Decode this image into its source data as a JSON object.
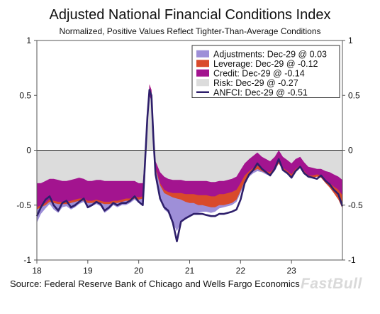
{
  "chart_data": {
    "type": "area",
    "title": "Adjusted National Financial Conditions Index",
    "subtitle": "Normalized, Positive Values Reflect Tighter-Than-Average Conditions",
    "source": "Source: Federal Reserve Bank of Chicago and Wells Fargo Economics",
    "watermark": "FastBull",
    "xlabel": "",
    "ylabel": "",
    "ylim": [
      -1,
      1
    ],
    "xlim": [
      2018.0,
      2024.0
    ],
    "x_ticks": [
      {
        "value": 2018,
        "label": "18"
      },
      {
        "value": 2019,
        "label": "19"
      },
      {
        "value": 2020,
        "label": "20"
      },
      {
        "value": 2021,
        "label": "21"
      },
      {
        "value": 2022,
        "label": "22"
      },
      {
        "value": 2023,
        "label": "23"
      }
    ],
    "y_ticks": [
      {
        "value": 1,
        "label": "1"
      },
      {
        "value": 0.5,
        "label": "0.5"
      },
      {
        "value": 0,
        "label": "0"
      },
      {
        "value": -0.5,
        "label": "-0.5"
      },
      {
        "value": -1,
        "label": "-1"
      }
    ],
    "legend_position": "top-right",
    "colors": {
      "Adjustments": "#9e8fd8",
      "Leverage": "#d94a2b",
      "Credit": "#a3148f",
      "Risk": "#dcdcdc",
      "ANFCI": "#2e1f6b",
      "zero_line": "#333333"
    },
    "x": [
      2018.0,
      2018.08,
      2018.17,
      2018.25,
      2018.33,
      2018.42,
      2018.5,
      2018.58,
      2018.67,
      2018.75,
      2018.83,
      2018.92,
      2019.0,
      2019.08,
      2019.17,
      2019.25,
      2019.33,
      2019.42,
      2019.5,
      2019.58,
      2019.67,
      2019.75,
      2019.83,
      2019.92,
      2020.0,
      2020.08,
      2020.17,
      2020.21,
      2020.25,
      2020.29,
      2020.33,
      2020.42,
      2020.5,
      2020.58,
      2020.67,
      2020.75,
      2020.83,
      2020.92,
      2021.0,
      2021.08,
      2021.17,
      2021.25,
      2021.33,
      2021.42,
      2021.5,
      2021.58,
      2021.67,
      2021.75,
      2021.83,
      2021.92,
      2022.0,
      2022.08,
      2022.17,
      2022.25,
      2022.33,
      2022.42,
      2022.5,
      2022.58,
      2022.67,
      2022.75,
      2022.83,
      2022.92,
      2023.0,
      2023.08,
      2023.17,
      2023.25,
      2023.33,
      2023.42,
      2023.5,
      2023.58,
      2023.67,
      2023.75,
      2023.83,
      2023.92,
      2024.0
    ],
    "series": [
      {
        "name": "Risk",
        "kind": "area",
        "values": [
          -0.3,
          -0.3,
          -0.28,
          -0.26,
          -0.26,
          -0.27,
          -0.28,
          -0.28,
          -0.27,
          -0.26,
          -0.25,
          -0.26,
          -0.28,
          -0.28,
          -0.27,
          -0.27,
          -0.28,
          -0.28,
          -0.28,
          -0.28,
          -0.28,
          -0.28,
          -0.28,
          -0.28,
          -0.3,
          -0.3,
          0.2,
          0.5,
          0.45,
          0.1,
          -0.1,
          -0.2,
          -0.24,
          -0.26,
          -0.27,
          -0.27,
          -0.27,
          -0.28,
          -0.28,
          -0.28,
          -0.28,
          -0.28,
          -0.28,
          -0.29,
          -0.29,
          -0.28,
          -0.28,
          -0.27,
          -0.26,
          -0.24,
          -0.18,
          -0.12,
          -0.08,
          -0.05,
          -0.02,
          -0.06,
          -0.08,
          -0.1,
          -0.06,
          0.0,
          -0.06,
          -0.09,
          -0.12,
          -0.08,
          -0.06,
          -0.11,
          -0.15,
          -0.16,
          -0.17,
          -0.17,
          -0.19,
          -0.2,
          -0.22,
          -0.24,
          -0.27
        ]
      },
      {
        "name": "Credit",
        "kind": "area",
        "values": [
          -0.22,
          -0.2,
          -0.2,
          -0.19,
          -0.2,
          -0.2,
          -0.19,
          -0.19,
          -0.19,
          -0.19,
          -0.19,
          -0.18,
          -0.18,
          -0.18,
          -0.18,
          -0.19,
          -0.19,
          -0.19,
          -0.18,
          -0.18,
          -0.17,
          -0.16,
          -0.16,
          -0.14,
          -0.13,
          -0.12,
          0.08,
          0.1,
          0.1,
          0.05,
          -0.05,
          -0.1,
          -0.12,
          -0.12,
          -0.12,
          -0.12,
          -0.12,
          -0.12,
          -0.12,
          -0.12,
          -0.13,
          -0.13,
          -0.13,
          -0.13,
          -0.13,
          -0.12,
          -0.12,
          -0.12,
          -0.12,
          -0.12,
          -0.12,
          -0.11,
          -0.11,
          -0.11,
          -0.12,
          -0.11,
          -0.11,
          -0.1,
          -0.1,
          -0.1,
          -0.1,
          -0.1,
          -0.1,
          -0.09,
          -0.08,
          -0.08,
          -0.08,
          -0.07,
          -0.05,
          -0.06,
          -0.08,
          -0.1,
          -0.11,
          -0.12,
          -0.14
        ]
      },
      {
        "name": "Leverage",
        "kind": "area",
        "values": [
          -0.02,
          -0.02,
          -0.02,
          -0.02,
          -0.02,
          -0.02,
          -0.02,
          -0.02,
          -0.02,
          -0.02,
          -0.02,
          -0.02,
          -0.02,
          -0.02,
          -0.02,
          -0.02,
          -0.02,
          -0.02,
          -0.02,
          -0.02,
          -0.02,
          -0.02,
          -0.02,
          -0.02,
          -0.02,
          -0.02,
          0.0,
          0.0,
          0.0,
          0.0,
          -0.02,
          -0.02,
          -0.03,
          -0.03,
          -0.04,
          -0.05,
          -0.06,
          -0.07,
          -0.08,
          -0.08,
          -0.09,
          -0.09,
          -0.1,
          -0.1,
          -0.1,
          -0.1,
          -0.1,
          -0.1,
          -0.1,
          -0.09,
          -0.07,
          -0.05,
          -0.04,
          -0.03,
          -0.03,
          -0.02,
          -0.02,
          -0.02,
          -0.02,
          -0.02,
          -0.02,
          -0.02,
          -0.02,
          -0.02,
          -0.02,
          -0.02,
          -0.02,
          -0.02,
          -0.02,
          -0.02,
          -0.03,
          -0.04,
          -0.06,
          -0.09,
          -0.12
        ]
      },
      {
        "name": "Adjustments",
        "kind": "area",
        "values": [
          -0.12,
          -0.06,
          -0.03,
          -0.02,
          -0.06,
          -0.08,
          -0.03,
          -0.02,
          -0.06,
          -0.05,
          -0.03,
          -0.01,
          -0.05,
          -0.03,
          -0.02,
          -0.03,
          -0.08,
          -0.05,
          -0.02,
          -0.04,
          -0.03,
          -0.04,
          -0.02,
          -0.01,
          -0.03,
          -0.04,
          -0.01,
          -0.02,
          -0.03,
          -0.03,
          -0.05,
          -0.12,
          -0.15,
          -0.16,
          -0.23,
          -0.3,
          -0.2,
          -0.15,
          -0.12,
          -0.1,
          -0.07,
          -0.06,
          -0.05,
          -0.05,
          -0.04,
          -0.03,
          -0.02,
          -0.02,
          -0.02,
          -0.02,
          -0.02,
          -0.02,
          -0.01,
          -0.02,
          -0.02,
          -0.01,
          -0.01,
          -0.01,
          -0.01,
          0.0,
          0.0,
          0.0,
          0.0,
          0.0,
          0.0,
          0.0,
          0.01,
          0.01,
          0.01,
          0.02,
          0.02,
          0.03,
          0.03,
          0.03,
          0.03
        ]
      },
      {
        "name": "ANFCI",
        "kind": "line",
        "values": [
          -0.6,
          -0.52,
          -0.45,
          -0.42,
          -0.5,
          -0.55,
          -0.48,
          -0.46,
          -0.52,
          -0.5,
          -0.47,
          -0.44,
          -0.52,
          -0.5,
          -0.47,
          -0.49,
          -0.55,
          -0.52,
          -0.48,
          -0.5,
          -0.48,
          -0.48,
          -0.46,
          -0.42,
          -0.47,
          -0.5,
          0.3,
          0.55,
          0.5,
          0.1,
          -0.22,
          -0.44,
          -0.52,
          -0.55,
          -0.66,
          -0.83,
          -0.65,
          -0.62,
          -0.6,
          -0.58,
          -0.58,
          -0.58,
          -0.59,
          -0.6,
          -0.6,
          -0.58,
          -0.58,
          -0.57,
          -0.56,
          -0.54,
          -0.45,
          -0.3,
          -0.22,
          -0.18,
          -0.12,
          -0.17,
          -0.2,
          -0.23,
          -0.17,
          -0.08,
          -0.18,
          -0.21,
          -0.25,
          -0.19,
          -0.15,
          -0.21,
          -0.24,
          -0.25,
          -0.26,
          -0.23,
          -0.28,
          -0.31,
          -0.36,
          -0.4,
          -0.51
        ]
      }
    ],
    "legend": [
      {
        "name": "Adjustments",
        "label": "Adjustments: Dec-29 @ 0.03",
        "swatch": "box"
      },
      {
        "name": "Leverage",
        "label": "Leverage: Dec-29 @ -0.12",
        "swatch": "box"
      },
      {
        "name": "Credit",
        "label": "Credit: Dec-29 @ -0.14",
        "swatch": "box"
      },
      {
        "name": "Risk",
        "label": "Risk: Dec-29 @ -0.27",
        "swatch": "box"
      },
      {
        "name": "ANFCI",
        "label": "ANFCI: Dec-29 @ -0.51",
        "swatch": "line"
      }
    ]
  }
}
